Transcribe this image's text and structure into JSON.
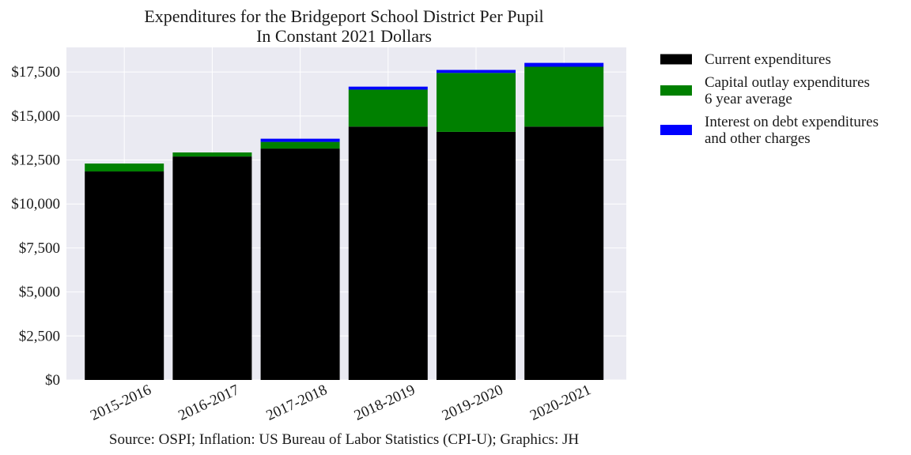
{
  "chart_data": {
    "type": "bar",
    "stacked": true,
    "title": "Expenditures for the Bridgeport School District Per Pupil",
    "subtitle": "In Constant 2021 Dollars",
    "xlabel": "",
    "ylabel": "",
    "source": "Source: OSPI; Inflation: US Bureau of Labor Statistics (CPI-U); Graphics: JH",
    "categories": [
      "2015-2016",
      "2016-2017",
      "2017-2018",
      "2018-2019",
      "2019-2020",
      "2020-2021"
    ],
    "series": [
      {
        "name": "Current expenditures",
        "color": "#000000",
        "values": [
          11850,
          12700,
          13150,
          14400,
          14100,
          14400
        ]
      },
      {
        "name": "Capital outlay expenditures\n6 year average",
        "color": "#008000",
        "values": [
          450,
          230,
          380,
          2100,
          3350,
          3400
        ]
      },
      {
        "name": "Interest on debt expenditures\nand other charges",
        "color": "#0000ff",
        "values": [
          0,
          0,
          180,
          170,
          170,
          220
        ]
      }
    ],
    "ylim": [
      0,
      18900
    ],
    "yticks": [
      0,
      2500,
      5000,
      7500,
      10000,
      12500,
      15000,
      17500
    ],
    "ytick_labels": [
      "$0",
      "$2,500",
      "$5,000",
      "$7,500",
      "$10,000",
      "$12,500",
      "$15,000",
      "$17,500"
    ],
    "grid": true,
    "legend_position": "outside-right-top",
    "background_color": "#eaeaf2",
    "grid_color": "#ffffff"
  }
}
